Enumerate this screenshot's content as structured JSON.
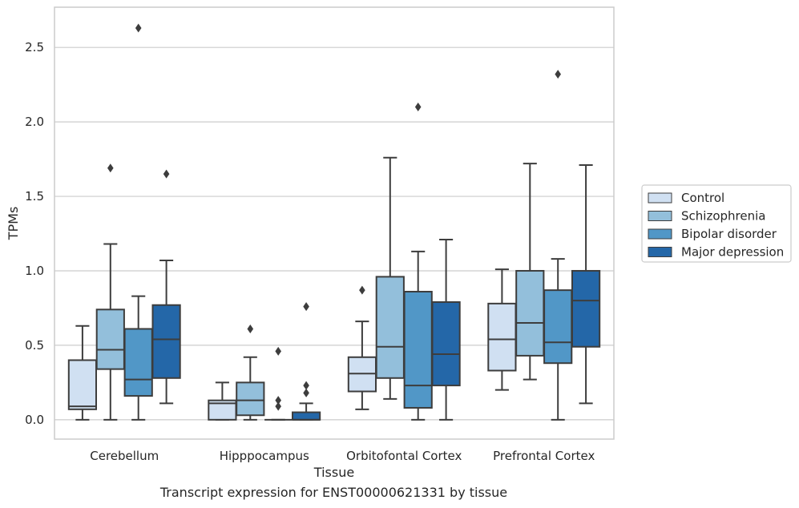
{
  "chart_data": {
    "type": "box",
    "xlabel": "Tissue",
    "ylabel": "TPMs",
    "ylim": [
      -0.13,
      2.77
    ],
    "yticks": [
      "0.0",
      "0.5",
      "1.0",
      "1.5",
      "2.0",
      "2.5"
    ],
    "grid": "horizontal",
    "legend_position": "right",
    "categories": [
      "Cerebellum",
      "Hipppocampus",
      "Orbitofontal Cortex",
      "Prefrontal Cortex"
    ],
    "series": [
      {
        "name": "Control",
        "color": "#d0e0f2",
        "boxes": [
          {
            "min": 0.0,
            "q1": 0.07,
            "median": 0.09,
            "q3": 0.4,
            "max": 0.63,
            "outliers": []
          },
          {
            "min": 0.0,
            "q1": 0.0,
            "median": 0.11,
            "q3": 0.13,
            "max": 0.25,
            "outliers": []
          },
          {
            "min": 0.07,
            "q1": 0.19,
            "median": 0.31,
            "q3": 0.42,
            "max": 0.66,
            "outliers": [
              0.87
            ]
          },
          {
            "min": 0.2,
            "q1": 0.33,
            "median": 0.54,
            "q3": 0.78,
            "max": 1.01,
            "outliers": []
          }
        ]
      },
      {
        "name": "Schizophrenia",
        "color": "#93bfdb",
        "boxes": [
          {
            "min": 0.0,
            "q1": 0.34,
            "median": 0.47,
            "q3": 0.74,
            "max": 1.18,
            "outliers": [
              1.69
            ]
          },
          {
            "min": 0.0,
            "q1": 0.03,
            "median": 0.13,
            "q3": 0.25,
            "max": 0.42,
            "outliers": [
              0.61
            ]
          },
          {
            "min": 0.14,
            "q1": 0.28,
            "median": 0.49,
            "q3": 0.96,
            "max": 1.76,
            "outliers": []
          },
          {
            "min": 0.27,
            "q1": 0.43,
            "median": 0.65,
            "q3": 1.0,
            "max": 1.72,
            "outliers": []
          }
        ]
      },
      {
        "name": "Bipolar disorder",
        "color": "#5197c7",
        "boxes": [
          {
            "min": 0.0,
            "q1": 0.16,
            "median": 0.27,
            "q3": 0.61,
            "max": 0.83,
            "outliers": [
              2.63
            ]
          },
          {
            "min": 0.0,
            "q1": 0.0,
            "median": 0.0,
            "q3": 0.0,
            "max": 0.0,
            "outliers": [
              0.46,
              0.13,
              0.09
            ]
          },
          {
            "min": 0.0,
            "q1": 0.08,
            "median": 0.23,
            "q3": 0.86,
            "max": 1.13,
            "outliers": [
              2.1
            ]
          },
          {
            "min": 0.0,
            "q1": 0.38,
            "median": 0.52,
            "q3": 0.87,
            "max": 1.08,
            "outliers": [
              2.32
            ]
          }
        ]
      },
      {
        "name": "Major depression",
        "color": "#2467a8",
        "boxes": [
          {
            "min": 0.11,
            "q1": 0.28,
            "median": 0.54,
            "q3": 0.77,
            "max": 1.07,
            "outliers": [
              1.65
            ]
          },
          {
            "min": 0.0,
            "q1": 0.0,
            "median": 0.0,
            "q3": 0.05,
            "max": 0.11,
            "outliers": [
              0.76,
              0.23,
              0.18
            ]
          },
          {
            "min": 0.0,
            "q1": 0.23,
            "median": 0.44,
            "q3": 0.79,
            "max": 1.21,
            "outliers": []
          },
          {
            "min": 0.11,
            "q1": 0.49,
            "median": 0.8,
            "q3": 1.0,
            "max": 1.71,
            "outliers": []
          }
        ]
      }
    ]
  },
  "caption": "Transcript expression for ENST00000621331 by tissue"
}
